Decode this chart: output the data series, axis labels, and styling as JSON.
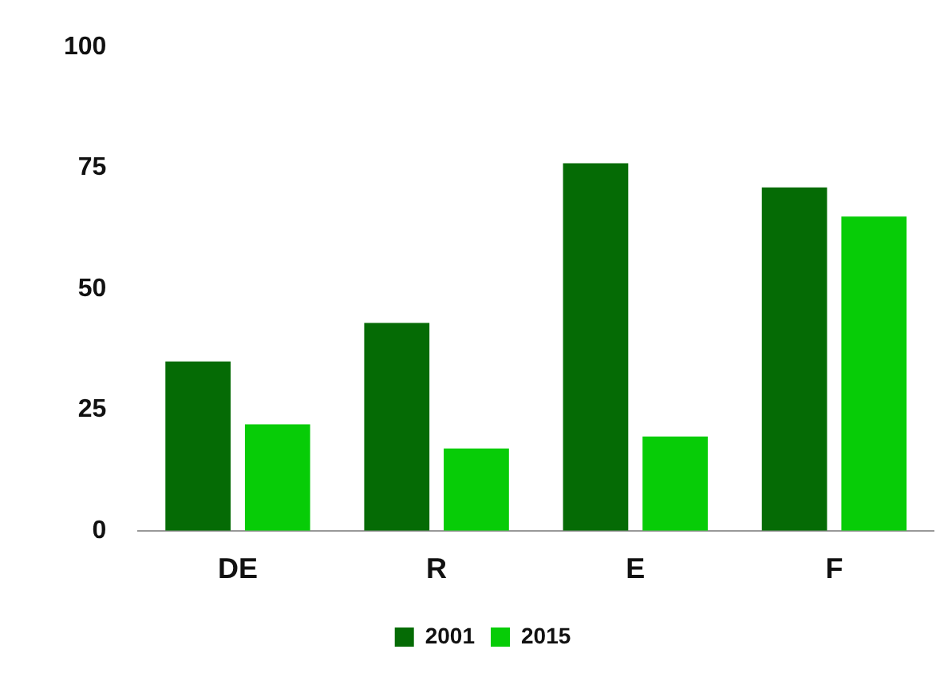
{
  "chart_data": {
    "type": "bar",
    "categories": [
      "DE",
      "R",
      "E",
      "F"
    ],
    "series": [
      {
        "name": "2001",
        "color": "#056b05",
        "values": [
          35,
          43,
          76,
          71
        ]
      },
      {
        "name": "2015",
        "color": "#07cc07",
        "values": [
          22,
          17,
          19.5,
          65
        ]
      }
    ],
    "ylim": [
      0,
      100
    ],
    "yticks": [
      0,
      25,
      50,
      75,
      100
    ],
    "grid": false,
    "legend": "bottom"
  }
}
